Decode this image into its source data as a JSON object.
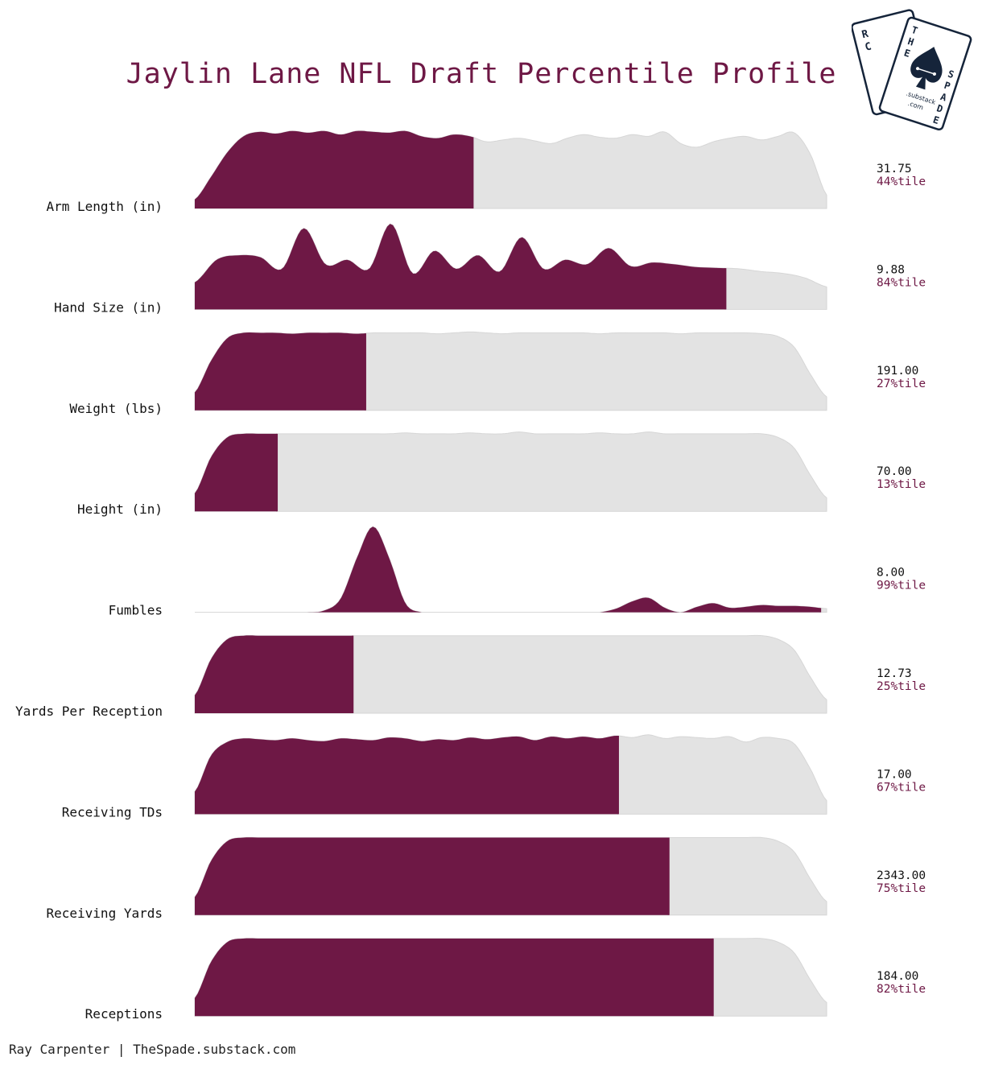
{
  "title": "Jaylin Lane NFL Draft Percentile Profile",
  "footer": "Ray Carpenter | TheSpade.substack.com",
  "logo": {
    "letters_left": "RC",
    "letters_right": "THE SPADE",
    "sub1": ".substack",
    "sub2": ".com",
    "icon": "spade-icon"
  },
  "colors": {
    "highlight": "#6e1845",
    "background_dist": "#e3e3e3",
    "text": "#111111",
    "percentile_text": "#6e1845",
    "logo": "#15243a"
  },
  "chart_data": {
    "type": "ridgeline-percentile",
    "rows": [
      {
        "label": "Arm Length (in)",
        "value": "31.75",
        "percentile_label": "44%tile",
        "percentile": 0.44,
        "density": [
          0.1,
          0.35,
          0.62,
          0.8,
          0.85,
          0.83,
          0.86,
          0.84,
          0.86,
          0.82,
          0.86,
          0.85,
          0.84,
          0.86,
          0.8,
          0.78,
          0.82,
          0.8,
          0.74,
          0.76,
          0.78,
          0.75,
          0.72,
          0.78,
          0.82,
          0.79,
          0.78,
          0.82,
          0.8,
          0.85,
          0.72,
          0.68,
          0.74,
          0.78,
          0.8,
          0.76,
          0.8,
          0.84,
          0.6,
          0.15
        ]
      },
      {
        "label": "Hand Size (in)",
        "value": "9.88",
        "percentile_label": "84%tile",
        "percentile": 0.84,
        "density": [
          0.3,
          0.55,
          0.6,
          0.58,
          0.45,
          0.9,
          0.5,
          0.55,
          0.45,
          0.95,
          0.4,
          0.65,
          0.45,
          0.6,
          0.42,
          0.8,
          0.45,
          0.55,
          0.5,
          0.68,
          0.48,
          0.52,
          0.5,
          0.47,
          0.46,
          0.45,
          0.42,
          0.4,
          0.35,
          0.25
        ]
      },
      {
        "label": "Weight (lbs)",
        "value": "191.00",
        "percentile_label": "27%tile",
        "percentile": 0.27,
        "density": [
          0.2,
          0.55,
          0.8,
          0.86,
          0.86,
          0.86,
          0.85,
          0.86,
          0.86,
          0.86,
          0.85,
          0.86,
          0.86,
          0.86,
          0.86,
          0.85,
          0.86,
          0.87,
          0.86,
          0.85,
          0.86,
          0.86,
          0.86,
          0.86,
          0.86,
          0.85,
          0.86,
          0.86,
          0.86,
          0.86,
          0.85,
          0.86,
          0.86,
          0.86,
          0.86,
          0.85,
          0.82,
          0.7,
          0.4,
          0.15
        ]
      },
      {
        "label": "Height (in)",
        "value": "70.00",
        "percentile_label": "13%tile",
        "percentile": 0.13,
        "density": [
          0.2,
          0.6,
          0.82,
          0.86,
          0.86,
          0.86,
          0.86,
          0.86,
          0.86,
          0.86,
          0.86,
          0.86,
          0.86,
          0.87,
          0.86,
          0.86,
          0.86,
          0.87,
          0.86,
          0.86,
          0.88,
          0.86,
          0.86,
          0.86,
          0.86,
          0.87,
          0.86,
          0.86,
          0.88,
          0.86,
          0.86,
          0.86,
          0.86,
          0.86,
          0.86,
          0.86,
          0.82,
          0.7,
          0.4,
          0.15
        ]
      },
      {
        "label": "Fumbles",
        "value": "8.00",
        "percentile_label": "99%tile",
        "percentile": 0.99,
        "density": [
          0.0,
          0.0,
          0.0,
          0.0,
          0.0,
          0.0,
          0.0,
          0.0,
          0.02,
          0.15,
          0.6,
          0.95,
          0.6,
          0.1,
          0.0,
          0.0,
          0.0,
          0.0,
          0.0,
          0.0,
          0.0,
          0.0,
          0.0,
          0.0,
          0.0,
          0.0,
          0.04,
          0.12,
          0.16,
          0.05,
          0.0,
          0.06,
          0.1,
          0.05,
          0.06,
          0.08,
          0.07,
          0.07,
          0.06,
          0.04
        ]
      },
      {
        "label": "Yards Per Reception",
        "value": "12.73",
        "percentile_label": "25%tile",
        "percentile": 0.25,
        "density": [
          0.2,
          0.6,
          0.82,
          0.86,
          0.86,
          0.86,
          0.86,
          0.86,
          0.86,
          0.86,
          0.86,
          0.86,
          0.86,
          0.86,
          0.86,
          0.86,
          0.86,
          0.86,
          0.86,
          0.86,
          0.86,
          0.86,
          0.86,
          0.86,
          0.86,
          0.86,
          0.86,
          0.86,
          0.86,
          0.86,
          0.86,
          0.86,
          0.86,
          0.86,
          0.86,
          0.86,
          0.82,
          0.7,
          0.4,
          0.15
        ]
      },
      {
        "label": "Receiving TDs",
        "value": "17.00",
        "percentile_label": "67%tile",
        "percentile": 0.67,
        "density": [
          0.25,
          0.65,
          0.8,
          0.84,
          0.83,
          0.82,
          0.84,
          0.82,
          0.81,
          0.84,
          0.83,
          0.82,
          0.85,
          0.84,
          0.81,
          0.83,
          0.82,
          0.85,
          0.83,
          0.85,
          0.86,
          0.82,
          0.86,
          0.84,
          0.86,
          0.84,
          0.87,
          0.85,
          0.88,
          0.84,
          0.86,
          0.85,
          0.84,
          0.86,
          0.8,
          0.85,
          0.84,
          0.78,
          0.5,
          0.15
        ]
      },
      {
        "label": "Receiving Yards",
        "value": "2343.00",
        "percentile_label": "75%tile",
        "percentile": 0.75,
        "density": [
          0.2,
          0.6,
          0.82,
          0.86,
          0.86,
          0.86,
          0.86,
          0.86,
          0.86,
          0.86,
          0.86,
          0.86,
          0.86,
          0.86,
          0.86,
          0.86,
          0.86,
          0.86,
          0.86,
          0.86,
          0.86,
          0.86,
          0.86,
          0.86,
          0.86,
          0.86,
          0.86,
          0.86,
          0.86,
          0.86,
          0.86,
          0.86,
          0.86,
          0.86,
          0.86,
          0.86,
          0.82,
          0.7,
          0.4,
          0.15
        ]
      },
      {
        "label": "Receptions",
        "value": "184.00",
        "percentile_label": "82%tile",
        "percentile": 0.82,
        "density": [
          0.2,
          0.6,
          0.82,
          0.86,
          0.86,
          0.86,
          0.86,
          0.86,
          0.86,
          0.86,
          0.86,
          0.86,
          0.86,
          0.86,
          0.86,
          0.86,
          0.86,
          0.86,
          0.86,
          0.86,
          0.86,
          0.86,
          0.86,
          0.86,
          0.86,
          0.86,
          0.86,
          0.86,
          0.86,
          0.86,
          0.86,
          0.86,
          0.86,
          0.86,
          0.86,
          0.86,
          0.82,
          0.7,
          0.4,
          0.15
        ]
      }
    ]
  }
}
